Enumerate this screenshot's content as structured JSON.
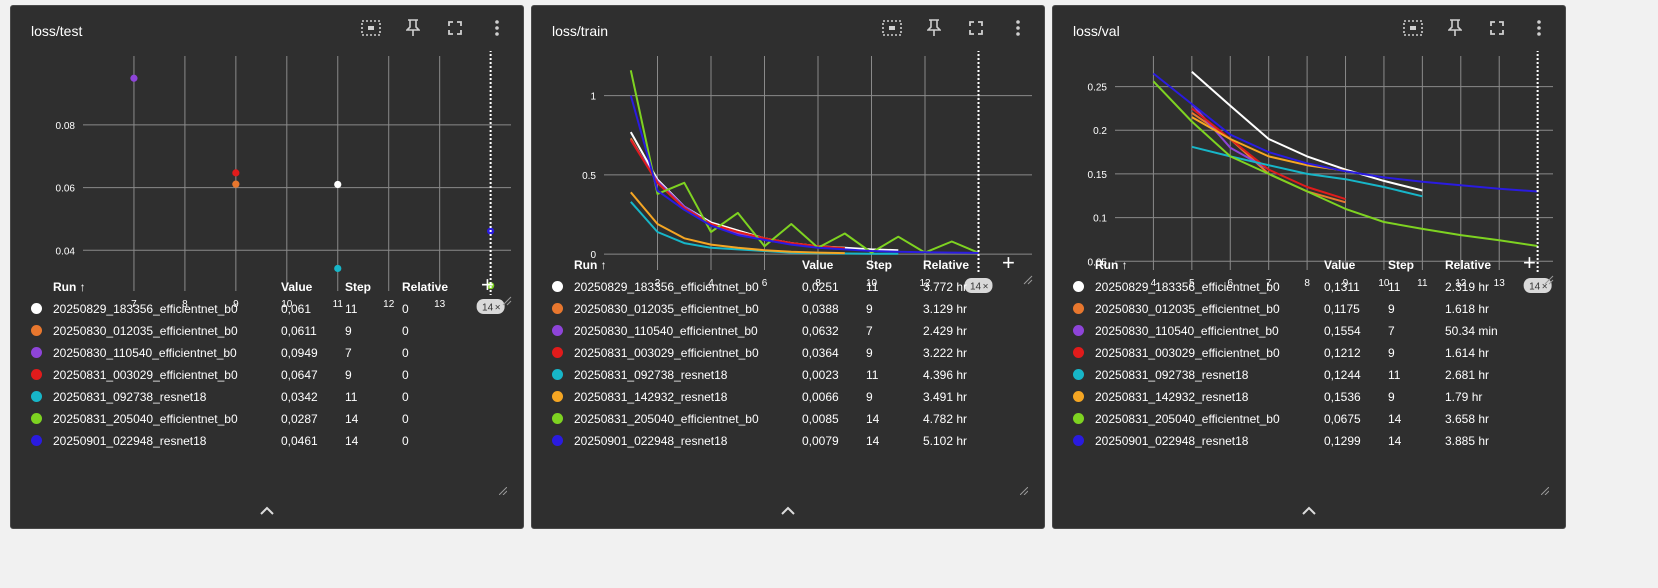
{
  "panels": [
    {
      "title": "loss/test",
      "chart_data": {
        "type": "scatter",
        "title": "loss/test",
        "xlim": [
          6,
          14.4
        ],
        "ylim": [
          0.027,
          0.102
        ],
        "xticks": [
          7,
          8,
          9,
          10,
          11,
          12,
          13
        ],
        "yticks": [
          0.04,
          0.06,
          0.08
        ],
        "ytick_labels": [
          "0.04",
          "0.06",
          "0.08"
        ],
        "marker_x": 14,
        "marker_label": "14",
        "series": [
          {
            "color": "#ffffff",
            "x": [
              11
            ],
            "y": [
              0.061
            ]
          },
          {
            "color": "#e8772e",
            "x": [
              9
            ],
            "y": [
              0.0611
            ]
          },
          {
            "color": "#8e44d9",
            "x": [
              7
            ],
            "y": [
              0.0949
            ]
          },
          {
            "color": "#e11b1b",
            "x": [
              9
            ],
            "y": [
              0.0647
            ]
          },
          {
            "color": "#17b6c8",
            "x": [
              11
            ],
            "y": [
              0.0342
            ]
          },
          {
            "color": "#7ed321",
            "x": [
              14
            ],
            "y": [
              0.0287
            ]
          },
          {
            "color": "#2a1be0",
            "x": [
              14
            ],
            "y": [
              0.0461
            ]
          }
        ]
      },
      "table": {
        "headers": {
          "run": "Run ↑",
          "value": "Value",
          "step": "Step",
          "relative": "Relative"
        },
        "add_label": "+",
        "rows": [
          {
            "color": "#ffffff",
            "run": "20250829_183356_efficientnet_b0",
            "value": "0,061",
            "step": "11",
            "relative": "0"
          },
          {
            "color": "#e8772e",
            "run": "20250830_012035_efficientnet_b0",
            "value": "0,0611",
            "step": "9",
            "relative": "0"
          },
          {
            "color": "#8e44d9",
            "run": "20250830_110540_efficientnet_b0",
            "value": "0,0949",
            "step": "7",
            "relative": "0"
          },
          {
            "color": "#e11b1b",
            "run": "20250831_003029_efficientnet_b0",
            "value": "0,0647",
            "step": "9",
            "relative": "0"
          },
          {
            "color": "#17b6c8",
            "run": "20250831_092738_resnet18",
            "value": "0,0342",
            "step": "11",
            "relative": "0"
          },
          {
            "color": "#7ed321",
            "run": "20250831_205040_efficientnet_b0",
            "value": "0,0287",
            "step": "14",
            "relative": "0"
          },
          {
            "color": "#2a1be0",
            "run": "20250901_022948_resnet18",
            "value": "0,0461",
            "step": "14",
            "relative": "0"
          }
        ]
      }
    },
    {
      "title": "loss/train",
      "chart_data": {
        "type": "line",
        "title": "loss/train",
        "xlim": [
          0,
          16
        ],
        "ylim": [
          -0.1,
          1.25
        ],
        "xticks": [
          2,
          4,
          6,
          8,
          10,
          12
        ],
        "yticks": [
          0,
          0.5,
          1
        ],
        "ytick_labels": [
          "0",
          "0.5",
          "1"
        ],
        "marker_x": 14,
        "marker_label": "14",
        "series": [
          {
            "color": "#ffffff",
            "x": [
              1,
              2,
              3,
              4,
              5,
              6,
              7,
              8,
              9,
              10,
              11
            ],
            "y": [
              0.77,
              0.47,
              0.3,
              0.2,
              0.15,
              0.1,
              0.07,
              0.05,
              0.04,
              0.03,
              0.025
            ]
          },
          {
            "color": "#e8772e",
            "x": [
              1,
              2,
              3,
              4,
              5,
              6,
              7,
              8,
              9
            ],
            "y": [
              0.73,
              0.45,
              0.29,
              0.19,
              0.14,
              0.1,
              0.07,
              0.05,
              0.039
            ]
          },
          {
            "color": "#8e44d9",
            "x": [
              1,
              2,
              3,
              4,
              5,
              6,
              7
            ],
            "y": [
              0.72,
              0.46,
              0.3,
              0.19,
              0.13,
              0.09,
              0.063
            ]
          },
          {
            "color": "#e11b1b",
            "x": [
              1,
              2,
              3,
              4,
              5,
              6,
              7,
              8,
              9
            ],
            "y": [
              0.72,
              0.45,
              0.29,
              0.19,
              0.14,
              0.1,
              0.07,
              0.05,
              0.036
            ]
          },
          {
            "color": "#17b6c8",
            "x": [
              1,
              2,
              3,
              4,
              5,
              6,
              7,
              8,
              9,
              10,
              11
            ],
            "y": [
              0.33,
              0.14,
              0.07,
              0.04,
              0.03,
              0.02,
              0.01,
              0.006,
              0.004,
              0.003,
              0.0023
            ]
          },
          {
            "color": "#f5a623",
            "x": [
              1,
              2,
              3,
              4,
              5,
              6,
              7,
              8,
              9
            ],
            "y": [
              0.39,
              0.19,
              0.1,
              0.06,
              0.04,
              0.025,
              0.015,
              0.01,
              0.0066
            ]
          },
          {
            "color": "#7ed321",
            "x": [
              1,
              2,
              3,
              4,
              5,
              6,
              7,
              8,
              9,
              10,
              11,
              12,
              13,
              14
            ],
            "y": [
              1.16,
              0.38,
              0.45,
              0.14,
              0.26,
              0.05,
              0.19,
              0.04,
              0.13,
              0.01,
              0.11,
              0.01,
              0.08,
              0.0085
            ]
          },
          {
            "color": "#2a1be0",
            "x": [
              1,
              2,
              3,
              4,
              5,
              6,
              7,
              8,
              9,
              10,
              11,
              12,
              13,
              14
            ],
            "y": [
              1.0,
              0.4,
              0.28,
              0.18,
              0.12,
              0.09,
              0.06,
              0.04,
              0.03,
              0.02,
              0.015,
              0.012,
              0.01,
              0.0079
            ]
          }
        ]
      },
      "table": {
        "headers": {
          "run": "Run ↑",
          "value": "Value",
          "step": "Step",
          "relative": "Relative"
        },
        "add_label": "+",
        "rows": [
          {
            "color": "#ffffff",
            "run": "20250829_183356_efficientnet_b0",
            "value": "0,0251",
            "step": "11",
            "relative": "3.772 hr"
          },
          {
            "color": "#e8772e",
            "run": "20250830_012035_efficientnet_b0",
            "value": "0,0388",
            "step": "9",
            "relative": "3.129 hr"
          },
          {
            "color": "#8e44d9",
            "run": "20250830_110540_efficientnet_b0",
            "value": "0,0632",
            "step": "7",
            "relative": "2.429 hr"
          },
          {
            "color": "#e11b1b",
            "run": "20250831_003029_efficientnet_b0",
            "value": "0,0364",
            "step": "9",
            "relative": "3.222 hr"
          },
          {
            "color": "#17b6c8",
            "run": "20250831_092738_resnet18",
            "value": "0,0023",
            "step": "11",
            "relative": "4.396 hr"
          },
          {
            "color": "#f5a623",
            "run": "20250831_142932_resnet18",
            "value": "0,0066",
            "step": "9",
            "relative": "3.491 hr"
          },
          {
            "color": "#7ed321",
            "run": "20250831_205040_efficientnet_b0",
            "value": "0,0085",
            "step": "14",
            "relative": "4.782 hr"
          },
          {
            "color": "#2a1be0",
            "run": "20250901_022948_resnet18",
            "value": "0,0079",
            "step": "14",
            "relative": "5.102 hr"
          }
        ]
      }
    },
    {
      "title": "loss/val",
      "chart_data": {
        "type": "line",
        "title": "loss/val",
        "xlim": [
          3,
          14.4
        ],
        "ylim": [
          0.04,
          0.285
        ],
        "xticks": [
          4,
          5,
          6,
          7,
          8,
          9,
          10,
          11,
          12,
          13
        ],
        "yticks": [
          0.05,
          0.1,
          0.15,
          0.2,
          0.25
        ],
        "ytick_labels": [
          "0.05",
          "0.1",
          "0.15",
          "0.2",
          "0.25"
        ],
        "marker_x": 14,
        "marker_label": "14",
        "series": [
          {
            "color": "#ffffff",
            "x": [
              5,
              6,
              7,
              8,
              9,
              10,
              11
            ],
            "y": [
              0.267,
              0.228,
              0.19,
              0.17,
              0.155,
              0.142,
              0.131
            ]
          },
          {
            "color": "#e8772e",
            "x": [
              5,
              6,
              7,
              8,
              9
            ],
            "y": [
              0.22,
              0.19,
              0.15,
              0.13,
              0.1175
            ]
          },
          {
            "color": "#8e44d9",
            "x": [
              5,
              6,
              7
            ],
            "y": [
              0.23,
              0.18,
              0.1554
            ]
          },
          {
            "color": "#e11b1b",
            "x": [
              5,
              6,
              7,
              8,
              9
            ],
            "y": [
              0.225,
              0.19,
              0.155,
              0.135,
              0.1212
            ]
          },
          {
            "color": "#17b6c8",
            "x": [
              5,
              6,
              7,
              8,
              9,
              10,
              11
            ],
            "y": [
              0.181,
              0.17,
              0.16,
              0.15,
              0.144,
              0.135,
              0.1244
            ]
          },
          {
            "color": "#f5a623",
            "x": [
              5,
              6,
              7,
              8,
              9
            ],
            "y": [
              0.215,
              0.19,
              0.17,
              0.16,
              0.1536
            ]
          },
          {
            "color": "#7ed321",
            "x": [
              4,
              5,
              6,
              7,
              8,
              9,
              10,
              11,
              12,
              13,
              14
            ],
            "y": [
              0.256,
              0.21,
              0.17,
              0.15,
              0.13,
              0.11,
              0.095,
              0.087,
              0.08,
              0.074,
              0.0675
            ]
          },
          {
            "color": "#2a1be0",
            "x": [
              4,
              5,
              6,
              7,
              8,
              9,
              10,
              11,
              12,
              13,
              14
            ],
            "y": [
              0.265,
              0.23,
              0.195,
              0.175,
              0.162,
              0.153,
              0.146,
              0.141,
              0.137,
              0.133,
              0.1299
            ]
          }
        ]
      },
      "table": {
        "headers": {
          "run": "Run ↑",
          "value": "Value",
          "step": "Step",
          "relative": "Relative"
        },
        "add_label": "+",
        "rows": [
          {
            "color": "#ffffff",
            "run": "20250829_183356_efficientnet_b0",
            "value": "0,1311",
            "step": "11",
            "relative": "2.319 hr"
          },
          {
            "color": "#e8772e",
            "run": "20250830_012035_efficientnet_b0",
            "value": "0,1175",
            "step": "9",
            "relative": "1.618 hr"
          },
          {
            "color": "#8e44d9",
            "run": "20250830_110540_efficientnet_b0",
            "value": "0,1554",
            "step": "7",
            "relative": "50.34 min"
          },
          {
            "color": "#e11b1b",
            "run": "20250831_003029_efficientnet_b0",
            "value": "0,1212",
            "step": "9",
            "relative": "1.614 hr"
          },
          {
            "color": "#17b6c8",
            "run": "20250831_092738_resnet18",
            "value": "0,1244",
            "step": "11",
            "relative": "2.681 hr"
          },
          {
            "color": "#f5a623",
            "run": "20250831_142932_resnet18",
            "value": "0,1536",
            "step": "9",
            "relative": "1.79 hr"
          },
          {
            "color": "#7ed321",
            "run": "20250831_205040_efficientnet_b0",
            "value": "0,0675",
            "step": "14",
            "relative": "3.658 hr"
          },
          {
            "color": "#2a1be0",
            "run": "20250901_022948_resnet18",
            "value": "0,1299",
            "step": "14",
            "relative": "3.885 hr"
          }
        ]
      }
    }
  ]
}
